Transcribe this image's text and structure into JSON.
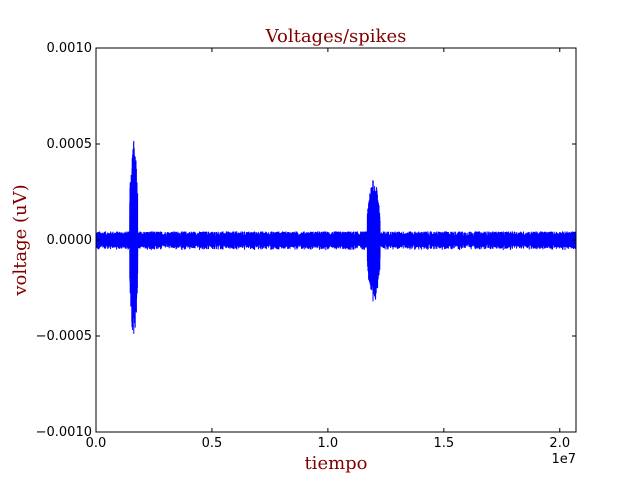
{
  "chart_data": {
    "type": "line",
    "title": "Voltages/spikes",
    "xlabel": "tiempo",
    "ylabel": "voltage (uV)",
    "x_offset_label": "1e7",
    "xlim": [
      0,
      20700000
    ],
    "ylim": [
      -0.001,
      0.001
    ],
    "x_ticks": [
      0,
      5000000,
      10000000,
      15000000,
      20000000
    ],
    "x_tick_labels": [
      "0.0",
      "0.5",
      "1.0",
      "1.5",
      "2.0"
    ],
    "y_ticks": [
      -0.001,
      -0.0005,
      0.0,
      0.0005,
      0.001
    ],
    "y_tick_labels": [
      "−0.0010",
      "−0.0005",
      "0.0000",
      "0.0005",
      "0.0010"
    ],
    "grid": false,
    "legend": "none",
    "series": [
      {
        "color": "#0000ff",
        "baseline_amplitude": 3e-05,
        "bursts": [
          {
            "x_start": 1450000,
            "x_end": 1800000,
            "y_max": 0.00053,
            "y_min": -0.00053
          },
          {
            "x_start": 11700000,
            "x_end": 12250000,
            "y_max": 0.00032,
            "y_min": -0.00033
          }
        ]
      }
    ],
    "colors": {
      "title": "#800000",
      "axis_label": "#800000",
      "line": "#0000ff"
    }
  }
}
